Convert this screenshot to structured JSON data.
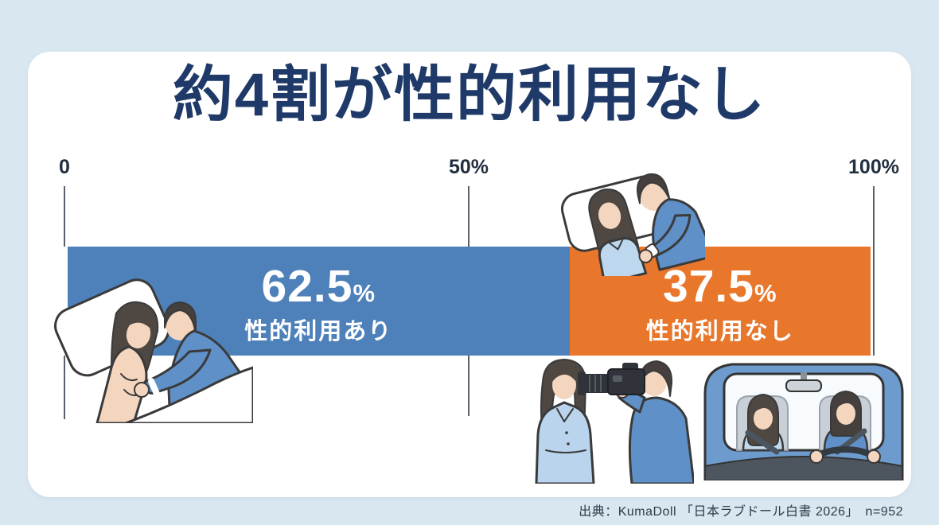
{
  "page": {
    "background_color": "#d9e7f1",
    "card_color": "#ffffff"
  },
  "header": {
    "title": "約4割が性的利用なし",
    "title_color": "#1f3a68"
  },
  "axis": {
    "ticks": [
      {
        "label": "0",
        "position_pct": 0
      },
      {
        "label": "50%",
        "position_pct": 50
      },
      {
        "label": "100%",
        "position_pct": 100
      }
    ]
  },
  "chart_data": {
    "type": "bar",
    "orientation": "horizontal",
    "stacked": true,
    "title": "約4割が性的利用なし",
    "xlim": [
      0,
      100
    ],
    "x_tick_labels": [
      "0",
      "50%",
      "100%"
    ],
    "grid": false,
    "legend_position": "none",
    "series": [
      {
        "name": "性的利用あり",
        "value": 62.5,
        "display_value": "62.5",
        "unit": "%",
        "color": "#4e81ba",
        "text_color": "#ffffff"
      },
      {
        "name": "性的利用なし",
        "value": 37.5,
        "display_value": "37.5",
        "unit": "%",
        "color": "#e8772c",
        "text_color": "#ffffff"
      }
    ]
  },
  "footer": {
    "source": "出典：KumaDoll 「日本ラブドール白書 2026」　n=952"
  },
  "illustrations": [
    {
      "name": "couple-sleeping-in-bed-illustration"
    },
    {
      "name": "couple-in-bed-illustration"
    },
    {
      "name": "photo-shoot-illustration"
    },
    {
      "name": "car-drive-illustration"
    }
  ]
}
